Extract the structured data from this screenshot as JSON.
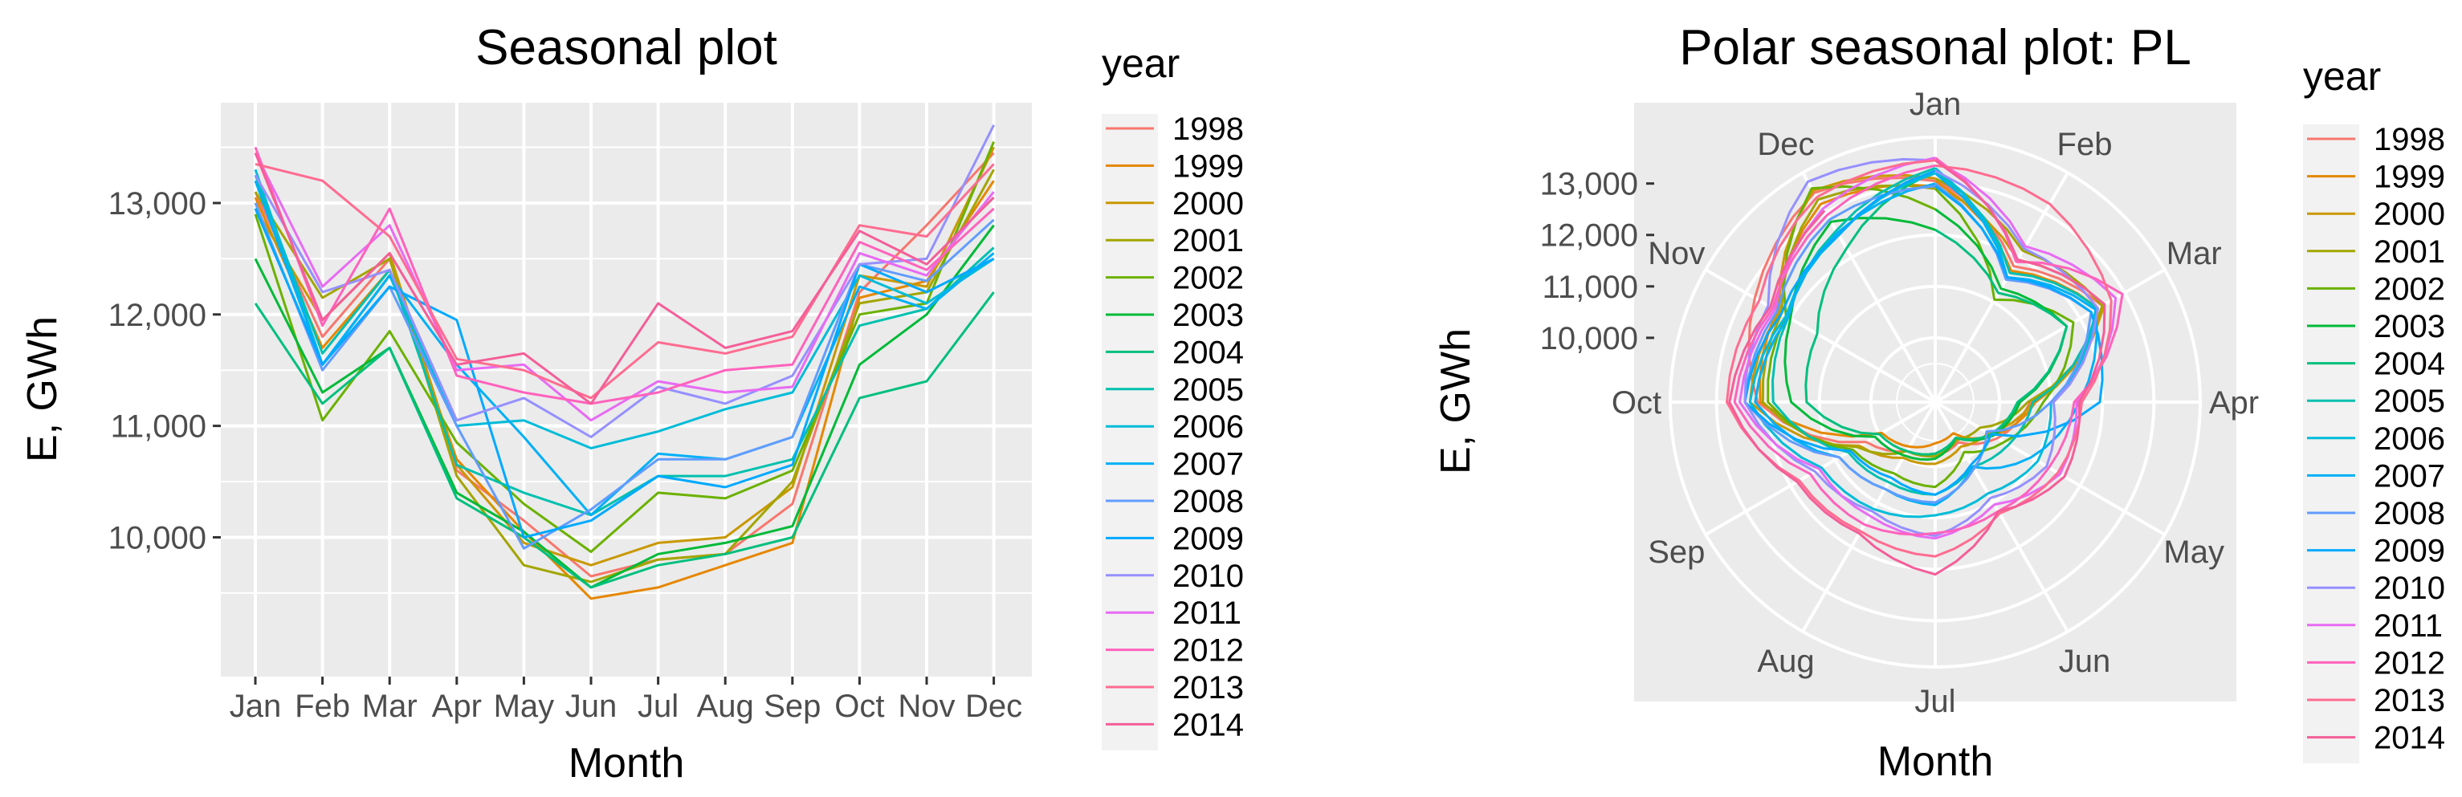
{
  "colors": {
    "panel": "#ebebeb",
    "grid": "#ffffff",
    "tick_text": "#4d4d4d"
  },
  "chart_data": [
    {
      "type": "line",
      "title": "Seasonal plot",
      "xlabel": "Month",
      "ylabel": "E, GWh",
      "ylim": [
        8750,
        13900
      ],
      "yticks": [
        10000,
        11000,
        12000,
        13000
      ],
      "ytick_labels": [
        "10,000",
        "11,000",
        "12,000",
        "13,000"
      ],
      "categories": [
        "Jan",
        "Feb",
        "Mar",
        "Apr",
        "May",
        "Jun",
        "Jul",
        "Aug",
        "Sep",
        "Oct",
        "Nov",
        "Dec"
      ],
      "legend": {
        "title": "year",
        "position": "right"
      },
      "grid": true,
      "series": [
        {
          "name": "1998",
          "color": "#F8766D",
          "values": [
            13100,
            11800,
            12500,
            10600,
            10150,
            9650,
            9800,
            9850,
            10300,
            12200,
            12800,
            13450
          ]
        },
        {
          "name": "1999",
          "color": "#E58700",
          "values": [
            13050,
            11700,
            12400,
            10700,
            10050,
            9450,
            9550,
            9750,
            9950,
            12150,
            12300,
            13200
          ]
        },
        {
          "name": "2000",
          "color": "#C99800",
          "values": [
            12950,
            11950,
            12550,
            10650,
            9950,
            9750,
            9950,
            10000,
            10450,
            12350,
            12250,
            13500
          ]
        },
        {
          "name": "2001",
          "color": "#A3A500",
          "values": [
            13100,
            12150,
            12500,
            10550,
            9750,
            9600,
            9800,
            9850,
            10500,
            12100,
            12200,
            13300
          ]
        },
        {
          "name": "2002",
          "color": "#6BB100",
          "values": [
            12900,
            11050,
            11850,
            10850,
            10300,
            9870,
            10400,
            10350,
            10600,
            12000,
            12100,
            13550
          ]
        },
        {
          "name": "2003",
          "color": "#00BA38",
          "values": [
            12500,
            11300,
            11700,
            10400,
            10050,
            9550,
            9850,
            9950,
            10100,
            11550,
            12000,
            12800
          ]
        },
        {
          "name": "2004",
          "color": "#00BF7D",
          "values": [
            12100,
            11200,
            11700,
            10350,
            10000,
            9550,
            9750,
            9850,
            10000,
            11250,
            11400,
            12200
          ]
        },
        {
          "name": "2005",
          "color": "#00C0AF",
          "values": [
            13250,
            11650,
            12400,
            10650,
            10400,
            10200,
            10550,
            10550,
            10700,
            11900,
            12050,
            12600
          ]
        },
        {
          "name": "2006",
          "color": "#00BCD8",
          "values": [
            13300,
            11550,
            12350,
            11000,
            11050,
            10800,
            10950,
            11150,
            11300,
            12350,
            12100,
            12500
          ]
        },
        {
          "name": "2007",
          "color": "#00B0F6",
          "values": [
            13200,
            11550,
            12350,
            11550,
            10900,
            10200,
            10750,
            10700,
            10900,
            12250,
            12050,
            12550
          ]
        },
        {
          "name": "2008",
          "color": "#619CFF",
          "values": [
            13000,
            11500,
            12250,
            11000,
            9900,
            10250,
            10700,
            10700,
            10900,
            12450,
            12300,
            12850
          ]
        },
        {
          "name": "2009",
          "color": "#00A9FF",
          "values": [
            12950,
            11550,
            12250,
            11950,
            10000,
            10150,
            10550,
            10450,
            10650,
            12450,
            12200,
            12500
          ]
        },
        {
          "name": "2010",
          "color": "#9590FF",
          "values": [
            13250,
            12200,
            12400,
            11050,
            11250,
            10900,
            11350,
            11200,
            11450,
            12450,
            12500,
            13700
          ]
        },
        {
          "name": "2011",
          "color": "#E76BF3",
          "values": [
            13450,
            12250,
            12800,
            11500,
            11550,
            11050,
            11400,
            11300,
            11350,
            12550,
            12350,
            13100
          ]
        },
        {
          "name": "2012",
          "color": "#FF62BC",
          "values": [
            13500,
            11900,
            12950,
            11450,
            11300,
            11200,
            11300,
            11500,
            11550,
            12650,
            12400,
            12950
          ]
        },
        {
          "name": "2013",
          "color": "#FF6C90",
          "values": [
            13350,
            13200,
            12700,
            11600,
            11500,
            11250,
            11750,
            11650,
            11800,
            12800,
            12700,
            13350
          ]
        },
        {
          "name": "2014",
          "color": "#F45E98",
          "values": [
            13450,
            11950,
            12550,
            11550,
            11650,
            11200,
            12100,
            11700,
            11850,
            12750,
            12450,
            13050
          ]
        }
      ]
    },
    {
      "type": "line",
      "projection": "polar",
      "title": "Polar seasonal plot: PL",
      "xlabel": "Month",
      "ylabel": "E, GWh",
      "rlim": [
        8750,
        13900
      ],
      "yticks": [
        10000,
        11000,
        12000,
        13000
      ],
      "ytick_labels": [
        "10,000",
        "11,000",
        "12,000",
        "13,000"
      ],
      "categories": [
        "Jan",
        "Feb",
        "Mar",
        "Apr",
        "May",
        "Jun",
        "Jul",
        "Aug",
        "Sep",
        "Oct",
        "Nov",
        "Dec"
      ],
      "legend": {
        "title": "year",
        "position": "right"
      },
      "grid": true,
      "series_from": "chart_data.0.series"
    }
  ]
}
